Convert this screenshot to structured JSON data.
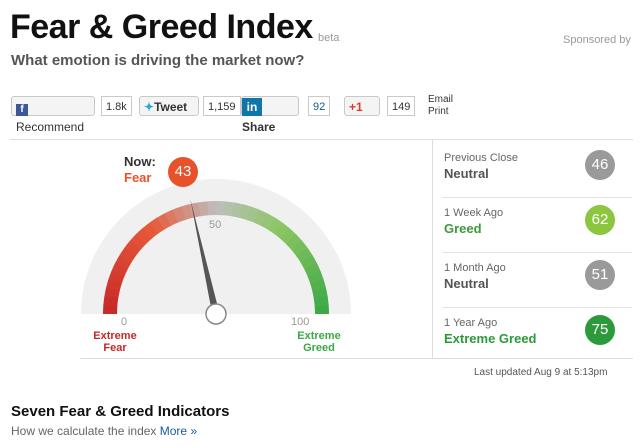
{
  "header": {
    "title": "Fear & Greed Index",
    "badge": "beta",
    "sponsor": "Sponsored by",
    "subtitle": "What emotion is driving the market now?"
  },
  "social": {
    "buttons": [
      {
        "label": "Recommend",
        "count": "1.8k"
      },
      {
        "label": "Tweet",
        "count": "1,159"
      },
      {
        "label": "Share",
        "count": "92"
      },
      {
        "label": "+1",
        "count": "149"
      }
    ],
    "links": [
      "Email",
      "Print"
    ]
  },
  "gauge": {
    "now_label": "Now:",
    "now_rating": "Fear",
    "value": 43,
    "min": 0,
    "mid": 50,
    "max": 100,
    "min_label": "Extreme Fear",
    "max_label": "Extreme Greed",
    "value_color": "#e8522b"
  },
  "history": [
    {
      "period": "Previous Close",
      "rating": "Neutral",
      "value": 46,
      "color": "#9a9a9a",
      "rating_color": "#555555"
    },
    {
      "period": "1 Week Ago",
      "rating": "Greed",
      "value": 62,
      "color": "#8cc63f",
      "rating_color": "#3c9a3a"
    },
    {
      "period": "1 Month Ago",
      "rating": "Neutral",
      "value": 51,
      "color": "#9a9a9a",
      "rating_color": "#555555"
    },
    {
      "period": "1 Year Ago",
      "rating": "Extreme Greed",
      "value": 75,
      "color": "#2b9a3a",
      "rating_color": "#2b9a3a"
    }
  ],
  "updated": "Last updated Aug 9 at 5:13pm",
  "footer": {
    "title": "Seven Fear & Greed Indicators",
    "link_text": "How we calculate the index",
    "more": "More »"
  }
}
